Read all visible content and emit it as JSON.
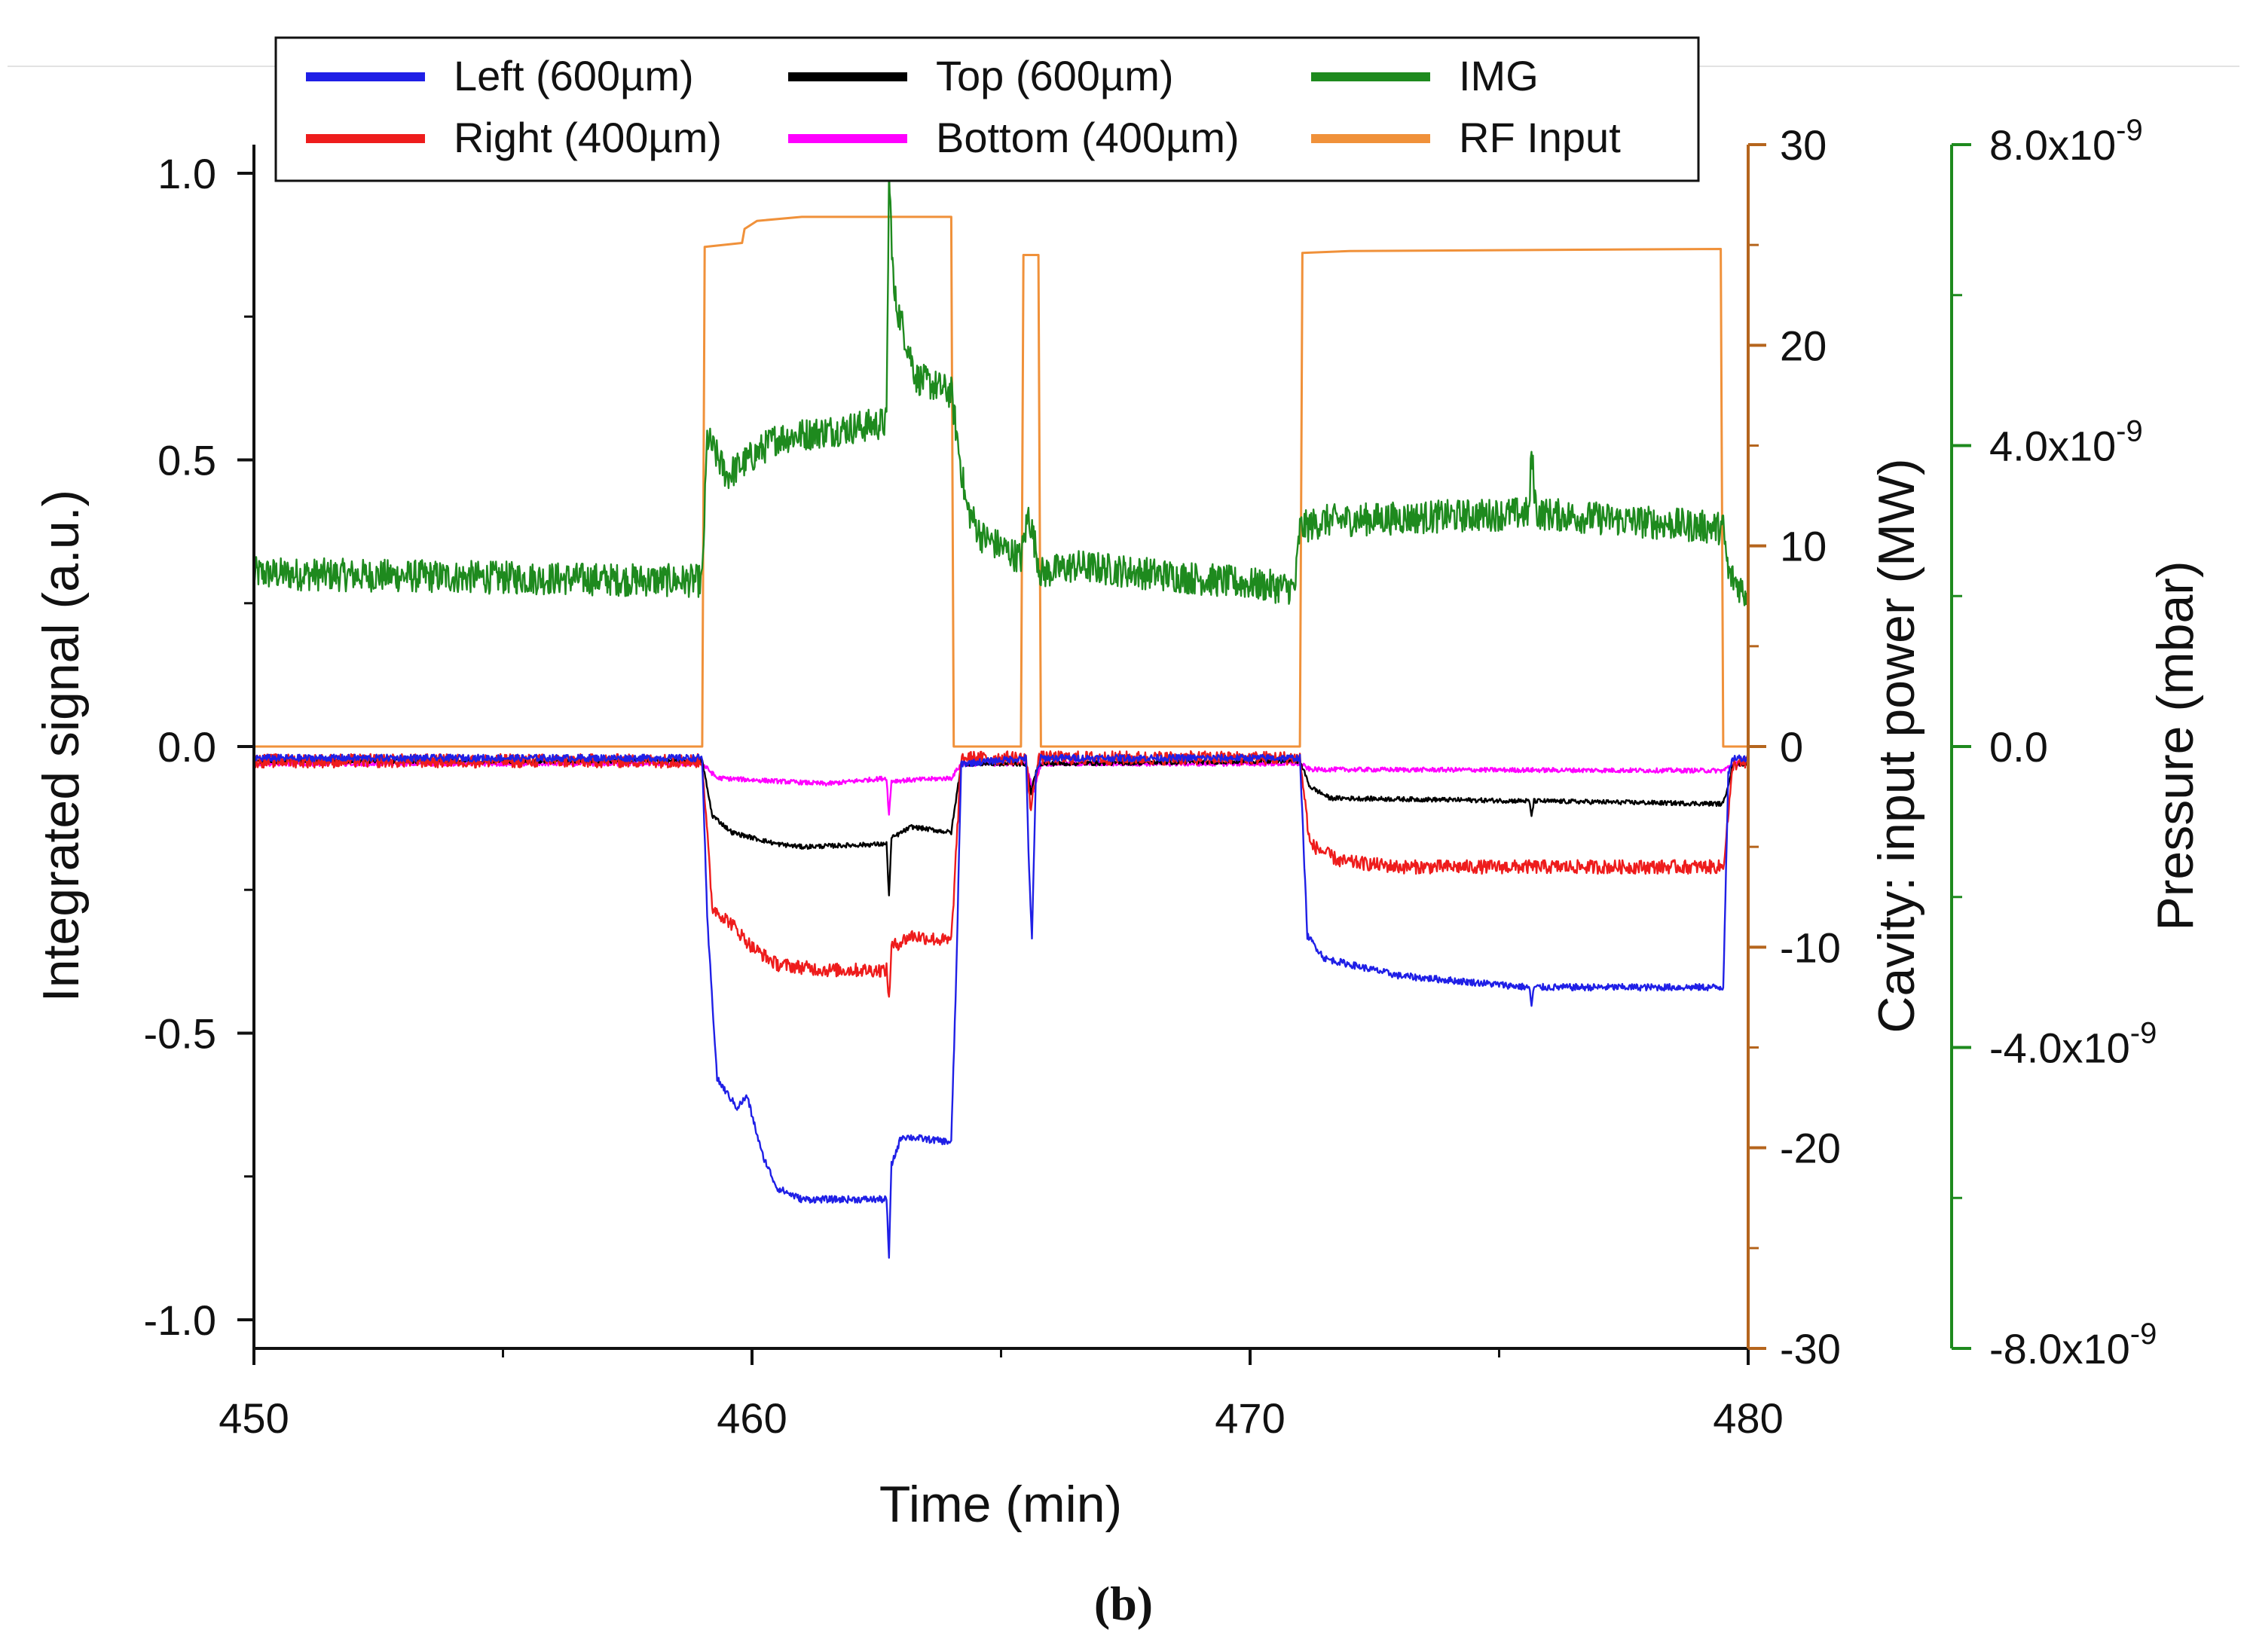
{
  "chart_data": {
    "type": "line",
    "xlabel": "Time (min)",
    "x_ticks": [
      "450",
      "460",
      "470",
      "480"
    ],
    "xlim": [
      450,
      480
    ],
    "caption": "(b)",
    "axes": {
      "left": {
        "label": "Integrated signal (a.u.)",
        "ylim": [
          -1.05,
          1.05
        ],
        "ticks": [
          "1.0",
          "0.5",
          "0.0",
          "-0.5",
          "-1.0"
        ],
        "color": "#111111"
      },
      "right1": {
        "label_prefix": "Cavity: ",
        "label_suffix": "input power  (MW)",
        "ylim": [
          -30,
          30
        ],
        "ticks": [
          "30",
          "20",
          "10",
          "0",
          "-10",
          "-20",
          "-30"
        ],
        "color": "#B5651D"
      },
      "right2": {
        "label": "Pressure (mbar)",
        "ylim": [
          -8e-09,
          8e-09
        ],
        "ticks": [
          {
            "mantissa": "8.0x10",
            "exp": "-9"
          },
          {
            "mantissa": "4.0x10",
            "exp": "-9"
          },
          {
            "mantissa": "0.0",
            "exp": ""
          },
          {
            "mantissa": "-4.0x10",
            "exp": "-9"
          },
          {
            "mantissa": "-8.0x10",
            "exp": "-9"
          }
        ],
        "color": "#1E8A1E"
      }
    },
    "legend": [
      {
        "name": "Left (600µm)",
        "color": "#1f1fe6"
      },
      {
        "name": "Top (600µm)",
        "color": "#000000"
      },
      {
        "name": "IMG",
        "color": "#1E8A1E"
      },
      {
        "name": "Right (400µm)",
        "color": "#ee1c1c"
      },
      {
        "name": "Bottom (400µm)",
        "color": "#ff00ff"
      },
      {
        "name": "RF Input",
        "color": "#F0913A"
      }
    ],
    "series": [
      {
        "name": "RF Input",
        "axis": "right1",
        "color": "#F0913A",
        "points": [
          [
            450,
            0
          ],
          [
            459.0,
            0
          ],
          [
            459.05,
            24.9
          ],
          [
            459.8,
            25.1
          ],
          [
            459.85,
            25.8
          ],
          [
            460.1,
            26.2
          ],
          [
            461.0,
            26.4
          ],
          [
            464.0,
            26.4
          ],
          [
            464.05,
            0
          ],
          [
            465.4,
            0
          ],
          [
            465.45,
            24.5
          ],
          [
            465.75,
            24.5
          ],
          [
            465.8,
            0
          ],
          [
            471.0,
            0
          ],
          [
            471.05,
            24.6
          ],
          [
            472,
            24.7
          ],
          [
            479.45,
            24.8
          ],
          [
            479.5,
            0
          ],
          [
            480,
            0
          ]
        ]
      },
      {
        "name": "IMG",
        "axis": "right2",
        "color": "#1E8A1E",
        "noise": 2.2e-10,
        "points": [
          [
            450,
            2.3e-09
          ],
          [
            459.0,
            2.2e-09
          ],
          [
            459.1,
            4.1e-09
          ],
          [
            459.5,
            3.6e-09
          ],
          [
            460.5,
            4.1e-09
          ],
          [
            462.7,
            4.3e-09
          ],
          [
            462.75,
            7.6e-09
          ],
          [
            462.85,
            6e-09
          ],
          [
            463.3,
            4.9e-09
          ],
          [
            464.0,
            4.7e-09
          ],
          [
            464.3,
            3.2e-09
          ],
          [
            464.6,
            2.8e-09
          ],
          [
            465.4,
            2.5e-09
          ],
          [
            465.55,
            3.1e-09
          ],
          [
            465.8,
            2.3e-09
          ],
          [
            466.5,
            2.4e-09
          ],
          [
            470.9,
            2.1e-09
          ],
          [
            471.0,
            2.9e-09
          ],
          [
            471.5,
            3e-09
          ],
          [
            475.6,
            3.1e-09
          ],
          [
            475.65,
            3.9e-09
          ],
          [
            475.75,
            3.1e-09
          ],
          [
            479.5,
            2.9e-09
          ],
          [
            479.6,
            2.3e-09
          ],
          [
            480,
            2e-09
          ]
        ]
      },
      {
        "name": "Bottom (400µm)",
        "axis": "left",
        "color": "#ff00ff",
        "noise": 0.004,
        "points": [
          [
            450,
            -0.03
          ],
          [
            459.0,
            -0.03
          ],
          [
            459.3,
            -0.055
          ],
          [
            461.5,
            -0.065
          ],
          [
            462.7,
            -0.055
          ],
          [
            462.75,
            -0.12
          ],
          [
            462.8,
            -0.06
          ],
          [
            464.0,
            -0.055
          ],
          [
            464.2,
            -0.03
          ],
          [
            465.5,
            -0.03
          ],
          [
            465.65,
            -0.08
          ],
          [
            465.8,
            -0.03
          ],
          [
            471.0,
            -0.03
          ],
          [
            471.2,
            -0.04
          ],
          [
            479.5,
            -0.042
          ],
          [
            479.7,
            -0.03
          ],
          [
            480,
            -0.03
          ]
        ]
      },
      {
        "name": "Top (600µm)",
        "axis": "left",
        "color": "#000000",
        "noise": 0.004,
        "points": [
          [
            450,
            -0.025
          ],
          [
            459.0,
            -0.025
          ],
          [
            459.2,
            -0.12
          ],
          [
            459.6,
            -0.15
          ],
          [
            460.5,
            -0.17
          ],
          [
            461.0,
            -0.175
          ],
          [
            462.7,
            -0.17
          ],
          [
            462.75,
            -0.26
          ],
          [
            462.8,
            -0.16
          ],
          [
            463.2,
            -0.14
          ],
          [
            464.0,
            -0.15
          ],
          [
            464.2,
            -0.03
          ],
          [
            465.5,
            -0.03
          ],
          [
            465.6,
            -0.08
          ],
          [
            465.75,
            -0.03
          ],
          [
            471.0,
            -0.025
          ],
          [
            471.2,
            -0.07
          ],
          [
            471.6,
            -0.09
          ],
          [
            475.6,
            -0.095
          ],
          [
            475.65,
            -0.12
          ],
          [
            475.7,
            -0.095
          ],
          [
            479.5,
            -0.1
          ],
          [
            479.7,
            -0.03
          ],
          [
            480,
            -0.03
          ]
        ]
      },
      {
        "name": "Right (400µm)",
        "axis": "left",
        "color": "#ee1c1c",
        "noise": 0.012,
        "points": [
          [
            450,
            -0.025
          ],
          [
            459.0,
            -0.025
          ],
          [
            459.2,
            -0.28
          ],
          [
            459.6,
            -0.31
          ],
          [
            460.0,
            -0.35
          ],
          [
            460.5,
            -0.38
          ],
          [
            461.5,
            -0.39
          ],
          [
            462.7,
            -0.39
          ],
          [
            462.75,
            -0.44
          ],
          [
            462.8,
            -0.35
          ],
          [
            463.2,
            -0.33
          ],
          [
            464.0,
            -0.34
          ],
          [
            464.2,
            -0.02
          ],
          [
            465.5,
            -0.02
          ],
          [
            465.6,
            -0.11
          ],
          [
            465.75,
            -0.02
          ],
          [
            471.0,
            -0.02
          ],
          [
            471.2,
            -0.17
          ],
          [
            471.8,
            -0.2
          ],
          [
            473,
            -0.21
          ],
          [
            475.6,
            -0.21
          ],
          [
            479.5,
            -0.21
          ],
          [
            479.7,
            -0.03
          ],
          [
            480,
            -0.03
          ]
        ]
      },
      {
        "name": "Left (600µm)",
        "axis": "left",
        "color": "#1f1fe6",
        "noise": 0.006,
        "points": [
          [
            450,
            -0.02
          ],
          [
            459.0,
            -0.02
          ],
          [
            459.1,
            -0.3
          ],
          [
            459.3,
            -0.58
          ],
          [
            459.7,
            -0.63
          ],
          [
            459.9,
            -0.61
          ],
          [
            460.2,
            -0.71
          ],
          [
            460.5,
            -0.77
          ],
          [
            461.0,
            -0.79
          ],
          [
            462.7,
            -0.79
          ],
          [
            462.75,
            -0.89
          ],
          [
            462.8,
            -0.73
          ],
          [
            463.0,
            -0.68
          ],
          [
            464.0,
            -0.69
          ],
          [
            464.1,
            -0.4
          ],
          [
            464.2,
            -0.03
          ],
          [
            465.5,
            -0.02
          ],
          [
            465.55,
            -0.18
          ],
          [
            465.62,
            -0.34
          ],
          [
            465.7,
            -0.05
          ],
          [
            465.8,
            -0.02
          ],
          [
            471.0,
            -0.02
          ],
          [
            471.15,
            -0.33
          ],
          [
            471.5,
            -0.37
          ],
          [
            473,
            -0.4
          ],
          [
            475.6,
            -0.42
          ],
          [
            475.65,
            -0.45
          ],
          [
            475.7,
            -0.42
          ],
          [
            479.5,
            -0.42
          ],
          [
            479.6,
            -0.05
          ],
          [
            479.7,
            -0.02
          ],
          [
            480,
            -0.02
          ]
        ]
      }
    ]
  }
}
